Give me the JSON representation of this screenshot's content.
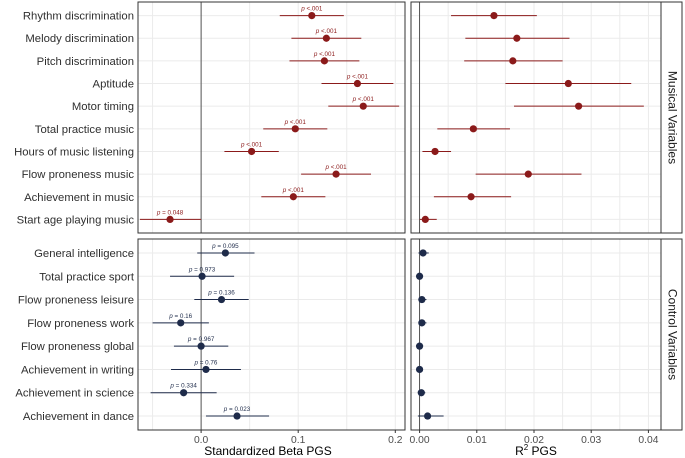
{
  "colors": {
    "musical": "#8b1a1a",
    "control": "#1e2b4a",
    "grid": "#ebebeb",
    "border": "#333333",
    "strip_bg": "#ffffff"
  },
  "chart_data": {
    "type": "scatter",
    "subtype": "forest-plot",
    "title": "",
    "x_axes": [
      {
        "name": "beta",
        "xlabel": "Standardized Beta PGS",
        "xlim": [
          -0.065,
          0.21
        ],
        "ticks": [
          0.0,
          0.1,
          0.2
        ],
        "tick_labels": [
          "0.0",
          "0.1",
          "0.2"
        ],
        "ref_line": 0
      },
      {
        "name": "r2",
        "xlabel": "R",
        "xlabel_sup": "2",
        "xlabel_suffix": " PGS",
        "xlim": [
          -0.0015,
          0.0422
        ],
        "ticks": [
          0.0,
          0.01,
          0.02,
          0.03,
          0.04
        ],
        "tick_labels": [
          "0.00",
          "0.01",
          "0.02",
          "0.03",
          "0.04"
        ],
        "ref_line": 0
      }
    ],
    "groups": [
      {
        "name": "Musical Variables",
        "color_key": "musical",
        "variables": [
          {
            "label": "Rhythm discrimination",
            "beta": 0.114,
            "lo": 0.081,
            "hi": 0.147,
            "p": "p <.001",
            "r2": 0.013,
            "r2_lo": 0.0055,
            "r2_hi": 0.0205
          },
          {
            "label": "Melody discrimination",
            "beta": 0.129,
            "lo": 0.093,
            "hi": 0.165,
            "p": "p <.001",
            "r2": 0.017,
            "r2_lo": 0.008,
            "r2_hi": 0.0262
          },
          {
            "label": "Pitch discrimination",
            "beta": 0.127,
            "lo": 0.091,
            "hi": 0.163,
            "p": "p <.001",
            "r2": 0.0163,
            "r2_lo": 0.0078,
            "r2_hi": 0.025
          },
          {
            "label": "Aptitude",
            "beta": 0.161,
            "lo": 0.124,
            "hi": 0.198,
            "p": "p <.001",
            "r2": 0.026,
            "r2_lo": 0.015,
            "r2_hi": 0.037
          },
          {
            "label": "Motor timing",
            "beta": 0.167,
            "lo": 0.131,
            "hi": 0.204,
            "p": "p <.001",
            "r2": 0.0278,
            "r2_lo": 0.0165,
            "r2_hi": 0.0392
          },
          {
            "label": "Total practice music",
            "beta": 0.097,
            "lo": 0.064,
            "hi": 0.13,
            "p": "p <.001",
            "r2": 0.0094,
            "r2_lo": 0.0031,
            "r2_hi": 0.0158
          },
          {
            "label": "Hours of music listening",
            "beta": 0.052,
            "lo": 0.024,
            "hi": 0.08,
            "p": "p <.001",
            "r2": 0.0027,
            "r2_lo": 0.0005,
            "r2_hi": 0.0055
          },
          {
            "label": "Flow proneness music",
            "beta": 0.139,
            "lo": 0.103,
            "hi": 0.175,
            "p": "p <.001",
            "r2": 0.019,
            "r2_lo": 0.0098,
            "r2_hi": 0.0283
          },
          {
            "label": "Achievement in music",
            "beta": 0.095,
            "lo": 0.062,
            "hi": 0.128,
            "p": "p <.001",
            "r2": 0.009,
            "r2_lo": 0.0025,
            "r2_hi": 0.016
          },
          {
            "label": "Start age playing music",
            "beta": -0.032,
            "lo": -0.063,
            "hi": 0.0,
            "p": "p = 0.048",
            "r2": 0.001,
            "r2_lo": 0.0,
            "r2_hi": 0.003
          }
        ]
      },
      {
        "name": "Control Variables",
        "color_key": "control",
        "variables": [
          {
            "label": "General intelligence",
            "beta": 0.025,
            "lo": -0.004,
            "hi": 0.055,
            "p": "p = 0.095",
            "r2": 0.0006,
            "r2_lo": -0.0002,
            "r2_hi": 0.0016
          },
          {
            "label": "Total practice sport",
            "beta": 0.001,
            "lo": -0.032,
            "hi": 0.034,
            "p": "p = 0.973",
            "r2": 0.0,
            "r2_lo": -0.0003,
            "r2_hi": 0.0003
          },
          {
            "label": "Flow proneness leisure",
            "beta": 0.021,
            "lo": -0.007,
            "hi": 0.049,
            "p": "p = 0.136",
            "r2": 0.0004,
            "r2_lo": -0.0002,
            "r2_hi": 0.0012
          },
          {
            "label": "Flow proneness work",
            "beta": -0.021,
            "lo": -0.05,
            "hi": 0.008,
            "p": "p = 0.16",
            "r2": 0.0004,
            "r2_lo": -0.0002,
            "r2_hi": 0.0012
          },
          {
            "label": "Flow proneness global",
            "beta": 0.0,
            "lo": -0.028,
            "hi": 0.028,
            "p": "p = 0.967",
            "r2": 0.0,
            "r2_lo": -0.0003,
            "r2_hi": 0.0003
          },
          {
            "label": "Achievement in writing",
            "beta": 0.005,
            "lo": -0.031,
            "hi": 0.041,
            "p": "p = 0.76",
            "r2": 0.0,
            "r2_lo": -0.0003,
            "r2_hi": 0.0003
          },
          {
            "label": "Achievement in science",
            "beta": -0.018,
            "lo": -0.052,
            "hi": 0.016,
            "p": "p = 0.334",
            "r2": 0.0003,
            "r2_lo": -0.0003,
            "r2_hi": 0.001
          },
          {
            "label": "Achievement in dance",
            "beta": 0.037,
            "lo": 0.005,
            "hi": 0.07,
            "p": "p = 0.023",
            "r2": 0.0014,
            "r2_lo": -0.0003,
            "r2_hi": 0.0042
          }
        ]
      }
    ]
  }
}
